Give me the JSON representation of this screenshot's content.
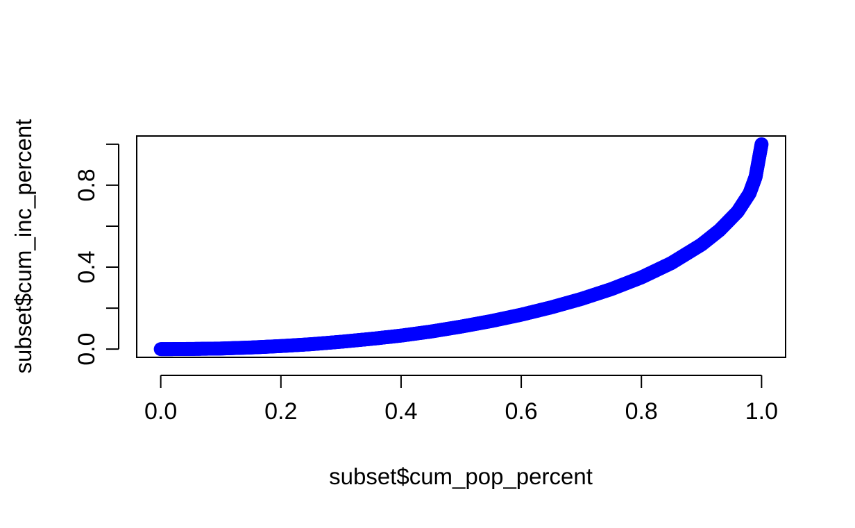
{
  "chart_data": {
    "type": "scatter",
    "title": "",
    "xlabel": "subset$cum_pop_percent",
    "ylabel": "subset$cum_inc_percent",
    "xlim": [
      -0.04,
      1.04
    ],
    "ylim": [
      -0.04,
      1.04
    ],
    "xticks": [
      0.0,
      0.2,
      0.4,
      0.6,
      0.8,
      1.0
    ],
    "xtick_labels": [
      "0.0",
      "0.2",
      "0.4",
      "0.6",
      "0.8",
      "1.0"
    ],
    "yticks": [
      0.0,
      0.2,
      0.4,
      0.6,
      0.8,
      1.0
    ],
    "ytick_labels": [
      "0.0",
      "",
      "0.4",
      "",
      "0.8",
      ""
    ],
    "grid": false,
    "legend": "none",
    "point_color": "#0000ff",
    "series": [
      {
        "x": [
          0.0,
          0.05,
          0.1,
          0.15,
          0.2,
          0.25,
          0.3,
          0.35,
          0.4,
          0.45,
          0.5,
          0.55,
          0.6,
          0.65,
          0.7,
          0.75,
          0.8,
          0.85,
          0.9,
          0.93,
          0.96,
          0.98,
          0.99,
          1.0
        ],
        "y": [
          0.0,
          0.001,
          0.003,
          0.008,
          0.015,
          0.024,
          0.036,
          0.05,
          0.066,
          0.086,
          0.11,
          0.137,
          0.168,
          0.204,
          0.245,
          0.293,
          0.35,
          0.42,
          0.51,
          0.58,
          0.67,
          0.76,
          0.84,
          1.0
        ]
      }
    ]
  }
}
